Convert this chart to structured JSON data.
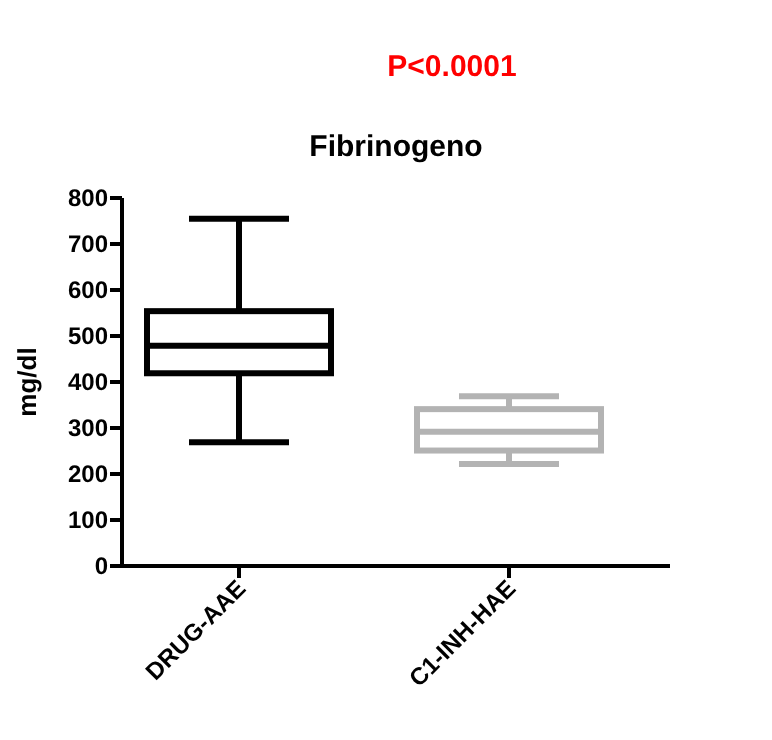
{
  "chart_data": {
    "type": "box",
    "title": "Fibrinogeno",
    "ylabel": "mg/dl",
    "categories": [
      "DRUG-AAE",
      "C1-INH-HAE"
    ],
    "colors": [
      "#000000",
      "#b3b3b3"
    ],
    "boxes": [
      {
        "low": 269,
        "q1": 419,
        "median": 479,
        "q3": 554,
        "high": 755
      },
      {
        "low": 222,
        "q1": 251,
        "median": 292,
        "q3": 341,
        "high": 369
      }
    ],
    "ylim": [
      0,
      800
    ],
    "yticks": [
      0,
      100,
      200,
      300,
      400,
      500,
      600,
      700,
      800
    ],
    "annotations": [
      "P<0.0001"
    ],
    "grid": false
  }
}
